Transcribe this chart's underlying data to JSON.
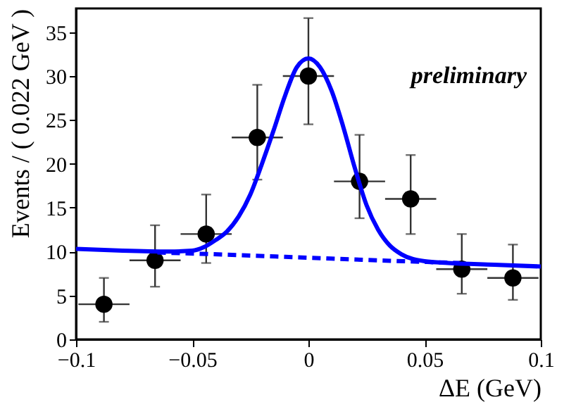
{
  "chart_data": {
    "type": "scatter",
    "xlabel": "ΔE (GeV)",
    "ylabel": "Events / ( 0.022 GeV )",
    "x": [
      -0.088,
      -0.066,
      -0.044,
      -0.022,
      0,
      0.022,
      0.044,
      0.066,
      0.088
    ],
    "xlim": [
      -0.1,
      0.1
    ],
    "xticks": [
      -0.1,
      -0.05,
      0,
      0.05,
      0.1
    ],
    "ylim": [
      0,
      37.7
    ],
    "yticks": [
      0,
      5,
      10,
      15,
      20,
      25,
      30,
      35
    ],
    "grid": false,
    "annotations": [
      "preliminary"
    ],
    "series": [
      {
        "color": "#000000",
        "marker": "circle",
        "values": [
          4,
          9,
          12,
          23,
          30,
          18,
          16,
          8,
          7
        ],
        "xerrors": [
          0.011,
          0.011,
          0.011,
          0.011,
          0.011,
          0.011,
          0.011,
          0.011,
          0.011
        ],
        "errors": [
          [
            2,
            7
          ],
          [
            6,
            13
          ],
          [
            8.7,
            16.5
          ],
          [
            18.2,
            29
          ],
          [
            24.5,
            36.6
          ],
          [
            13.8,
            23.3
          ],
          [
            12,
            21
          ],
          [
            5.2,
            12
          ],
          [
            4.5,
            10.8
          ]
        ]
      },
      {
        "type": "line",
        "color": "#0000ff",
        "line_style": "solid",
        "x": [
          -0.1,
          -0.08,
          -0.06,
          -0.05,
          -0.045,
          -0.04,
          -0.035,
          -0.03,
          -0.025,
          -0.02,
          -0.015,
          -0.01,
          -0.005,
          0,
          0.005,
          0.01,
          0.015,
          0.02,
          0.025,
          0.03,
          0.035,
          0.04,
          0.05,
          0.06,
          0.08,
          0.1
        ],
        "values": [
          10.3,
          10.1,
          10,
          10.1,
          10.5,
          11.3,
          12.3,
          14,
          16.5,
          20,
          23.8,
          27.8,
          31,
          32,
          31,
          28.3,
          24.2,
          19.5,
          15.3,
          12.5,
          10.7,
          9.7,
          8.9,
          8.7,
          8.5,
          8.3
        ]
      },
      {
        "type": "line",
        "color": "#0000ff",
        "line_style": "dashed",
        "x": [
          -0.065,
          -0.03,
          0,
          0.03,
          0.065
        ],
        "values": [
          9.9,
          9.6,
          9.3,
          9.0,
          8.7
        ]
      }
    ]
  }
}
